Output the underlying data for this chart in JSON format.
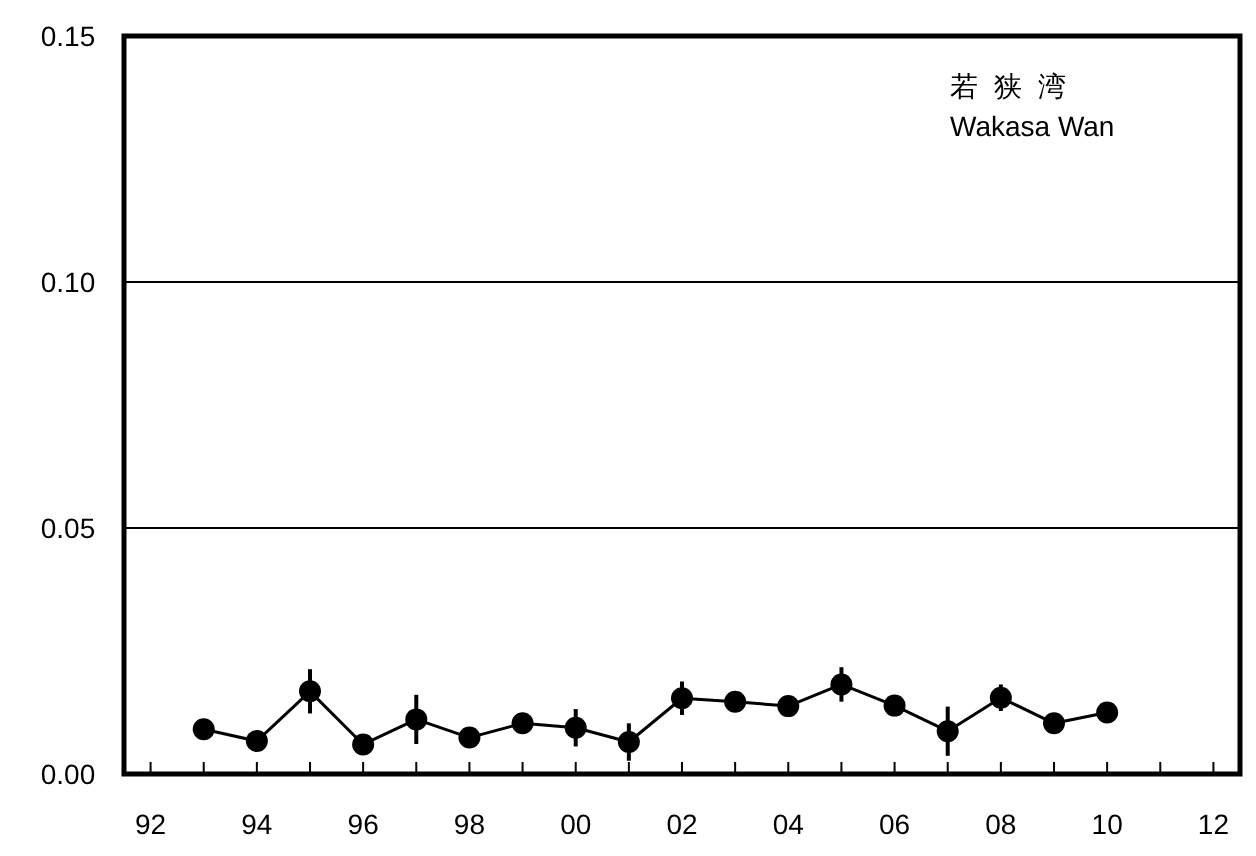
{
  "chart_data": {
    "type": "line",
    "annotations": [
      "若 狭 湾",
      "Wakasa Wan"
    ],
    "x": [
      1993,
      1994,
      1995,
      1996,
      1997,
      1998,
      1999,
      2000,
      2001,
      2002,
      2003,
      2004,
      2005,
      2006,
      2007,
      2008,
      2009,
      2010
    ],
    "series": [
      {
        "color": "#000000",
        "values": [
          0.0091,
          0.0067,
          0.0168,
          0.006,
          0.0111,
          0.0074,
          0.0103,
          0.0094,
          0.0065,
          0.0154,
          0.0147,
          0.0138,
          0.0182,
          0.0139,
          0.0087,
          0.0155,
          0.0103,
          0.0125
        ],
        "errors": [
          null,
          null,
          0.0045,
          null,
          0.005,
          null,
          null,
          0.0038,
          0.0038,
          0.0034,
          null,
          null,
          0.0035,
          null,
          0.005,
          0.0027,
          null,
          null
        ]
      }
    ],
    "xlim": [
      1991.5,
      2012.5
    ],
    "xticks": [
      {
        "value": 1992,
        "label": "92"
      },
      {
        "value": 1993,
        "label": null
      },
      {
        "value": 1994,
        "label": "94"
      },
      {
        "value": 1995,
        "label": null
      },
      {
        "value": 1996,
        "label": "96"
      },
      {
        "value": 1997,
        "label": null
      },
      {
        "value": 1998,
        "label": "98"
      },
      {
        "value": 1999,
        "label": null
      },
      {
        "value": 2000,
        "label": "00"
      },
      {
        "value": 2001,
        "label": null
      },
      {
        "value": 2002,
        "label": "02"
      },
      {
        "value": 2003,
        "label": null
      },
      {
        "value": 2004,
        "label": "04"
      },
      {
        "value": 2005,
        "label": null
      },
      {
        "value": 2006,
        "label": "06"
      },
      {
        "value": 2007,
        "label": null
      },
      {
        "value": 2008,
        "label": "08"
      },
      {
        "value": 2009,
        "label": null
      },
      {
        "value": 2010,
        "label": "10"
      },
      {
        "value": 2011,
        "label": null
      },
      {
        "value": 2012,
        "label": "12"
      }
    ],
    "ylim": [
      0,
      0.15
    ],
    "yticks": [
      {
        "value": 0,
        "label": "0.00"
      },
      {
        "value": 0.05,
        "label": "0.05"
      },
      {
        "value": 0.1,
        "label": "0.10"
      },
      {
        "value": 0.15,
        "label": "0.15"
      }
    ],
    "grid": "y",
    "marker": "circle",
    "line_style": "solid"
  }
}
